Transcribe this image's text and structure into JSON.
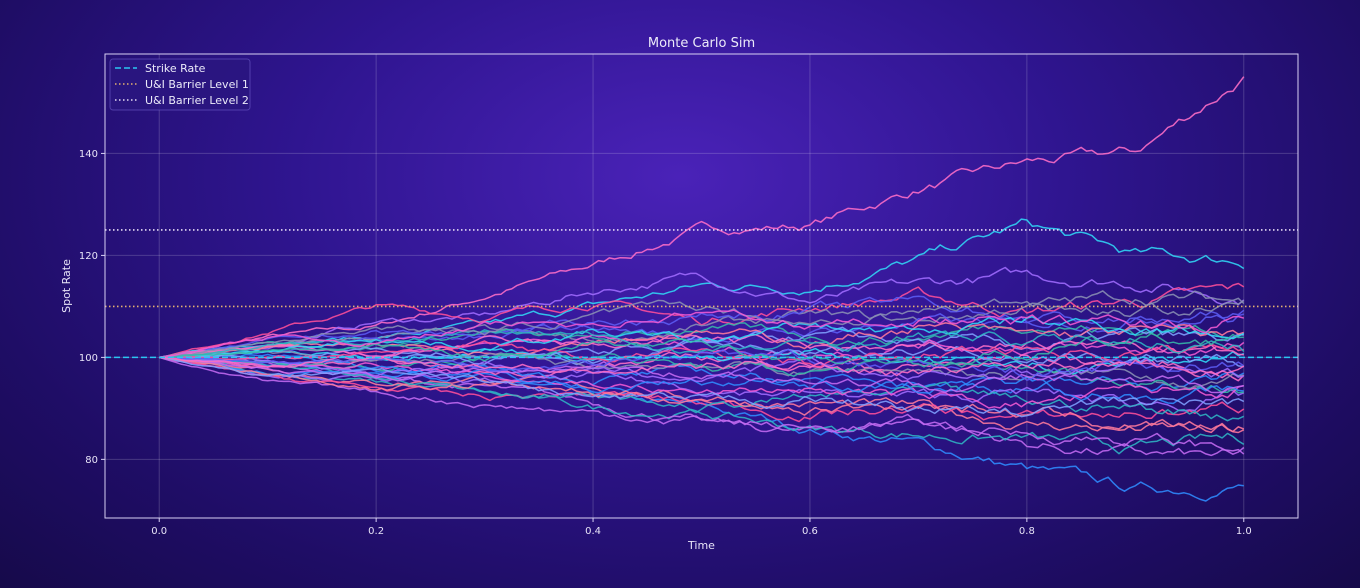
{
  "chart_data": {
    "type": "line",
    "title": "Monte Carlo Sim",
    "xlabel": "Time",
    "ylabel": "Spot Rate",
    "xlim": [
      -0.05,
      1.05
    ],
    "ylim": [
      68.5,
      159.5
    ],
    "xticks": [
      0.0,
      0.2,
      0.4,
      0.6,
      0.8,
      1.0
    ],
    "xtick_labels": [
      "0.0",
      "0.2",
      "0.4",
      "0.6",
      "0.8",
      "1.0"
    ],
    "yticks": [
      80,
      100,
      120,
      140
    ],
    "ytick_labels": [
      "80",
      "100",
      "120",
      "140"
    ],
    "grid": true,
    "legend_position": "top-left",
    "reference_lines": [
      {
        "name": "Strike Rate",
        "y": 100,
        "style": "dashed",
        "color": "#2bc6f2"
      },
      {
        "name": "U&I Barrier Level 1",
        "y": 110,
        "style": "dotted",
        "color": "#e3b070"
      },
      {
        "name": "U&I Barrier Level 2",
        "y": 125,
        "style": "dotted",
        "color": "#e6dcf4"
      }
    ],
    "path_colors": [
      "#ff6ec7",
      "#2f8cff",
      "#31d8f6",
      "#a06cff",
      "#ff4f9a",
      "#c46bf2",
      "#2fb5c4",
      "#ff7a9c",
      "#8a8fb4",
      "#5c5cf5",
      "#37b8a8",
      "#7fa0ff",
      "#f35ad4"
    ],
    "series": [
      {
        "x": [
          0,
          0.1,
          0.2,
          0.3,
          0.4,
          0.5,
          0.6,
          0.7,
          0.8,
          0.9,
          1.0
        ],
        "values": [
          100,
          104,
          106,
          112,
          118,
          125,
          126,
          133,
          138,
          140,
          155
        ]
      },
      {
        "x": [
          0,
          0.1,
          0.2,
          0.3,
          0.4,
          0.5,
          0.6,
          0.7,
          0.8,
          0.9,
          1.0
        ],
        "values": [
          100,
          101,
          98,
          96,
          92,
          90,
          86,
          83,
          78,
          74,
          75
        ]
      },
      {
        "x": [
          0,
          0.1,
          0.2,
          0.3,
          0.4,
          0.5,
          0.6,
          0.7,
          0.8,
          0.9,
          1.0
        ],
        "values": [
          100,
          103,
          104,
          106,
          110,
          114,
          114,
          119,
          126,
          120,
          119
        ]
      },
      {
        "x": [
          0,
          0.1,
          0.2,
          0.3,
          0.4,
          0.5,
          0.6,
          0.7,
          0.8,
          0.9,
          1.0
        ],
        "values": [
          100,
          102,
          107,
          108,
          113,
          116,
          111,
          114,
          116,
          115,
          112
        ]
      },
      {
        "x": [
          0,
          0.1,
          0.2,
          0.3,
          0.4,
          0.5,
          0.6,
          0.7,
          0.8,
          0.9,
          1.0
        ],
        "values": [
          100,
          105,
          110,
          108,
          111,
          107,
          110,
          112,
          109,
          111,
          113
        ]
      },
      {
        "x": [
          0,
          0.1,
          0.2,
          0.3,
          0.4,
          0.5,
          0.6,
          0.7,
          0.8,
          0.9,
          1.0
        ],
        "values": [
          100,
          99,
          96,
          94,
          91,
          87,
          85,
          88,
          83,
          81,
          80
        ]
      },
      {
        "x": [
          0,
          0.1,
          0.2,
          0.3,
          0.4,
          0.5,
          0.6,
          0.7,
          0.8,
          0.9,
          1.0
        ],
        "values": [
          100,
          97,
          95,
          93,
          90,
          89,
          86,
          85,
          84,
          82,
          84
        ]
      },
      {
        "x": [
          0,
          0.1,
          0.2,
          0.3,
          0.4,
          0.5,
          0.6,
          0.7,
          0.8,
          0.9,
          1.0
        ],
        "values": [
          100,
          98,
          95,
          96,
          94,
          92,
          91,
          90,
          87,
          86,
          85
        ]
      },
      {
        "x": [
          0,
          0.1,
          0.2,
          0.3,
          0.4,
          0.5,
          0.6,
          0.7,
          0.8,
          0.9,
          1.0
        ],
        "values": [
          100,
          102,
          104,
          105,
          103,
          106,
          108,
          107,
          110,
          112,
          111
        ]
      },
      {
        "x": [
          0,
          0.1,
          0.2,
          0.3,
          0.4,
          0.5,
          0.6,
          0.7,
          0.8,
          0.9,
          1.0
        ],
        "values": [
          100,
          101,
          103,
          104,
          106,
          104,
          105,
          107,
          106,
          108,
          109
        ]
      },
      {
        "x": [
          0,
          0.1,
          0.2,
          0.3,
          0.4,
          0.5,
          0.6,
          0.7,
          0.8,
          0.9,
          1.0
        ],
        "values": [
          100,
          103,
          102,
          105,
          103,
          106,
          104,
          104,
          107,
          105,
          106
        ]
      },
      {
        "x": [
          0,
          0.1,
          0.2,
          0.3,
          0.4,
          0.5,
          0.6,
          0.7,
          0.8,
          0.9,
          1.0
        ],
        "values": [
          100,
          99,
          100,
          101,
          99,
          102,
          104,
          103,
          102,
          104,
          103
        ]
      },
      {
        "x": [
          0,
          0.1,
          0.2,
          0.3,
          0.4,
          0.5,
          0.6,
          0.7,
          0.8,
          0.9,
          1.0
        ],
        "values": [
          100,
          102,
          101,
          103,
          104,
          102,
          101,
          103,
          102,
          101,
          102
        ]
      },
      {
        "x": [
          0,
          0.1,
          0.2,
          0.3,
          0.4,
          0.5,
          0.6,
          0.7,
          0.8,
          0.9,
          1.0
        ],
        "values": [
          100,
          98,
          99,
          97,
          98,
          100,
          99,
          98,
          100,
          99,
          97
        ]
      },
      {
        "x": [
          0,
          0.1,
          0.2,
          0.3,
          0.4,
          0.5,
          0.6,
          0.7,
          0.8,
          0.9,
          1.0
        ],
        "values": [
          100,
          99,
          97,
          98,
          96,
          97,
          95,
          96,
          94,
          95,
          96
        ]
      },
      {
        "x": [
          0,
          0.1,
          0.2,
          0.3,
          0.4,
          0.5,
          0.6,
          0.7,
          0.8,
          0.9,
          1.0
        ],
        "values": [
          100,
          101,
          100,
          102,
          100,
          99,
          101,
          100,
          98,
          99,
          100
        ]
      },
      {
        "x": [
          0,
          0.1,
          0.2,
          0.3,
          0.4,
          0.5,
          0.6,
          0.7,
          0.8,
          0.9,
          1.0
        ],
        "values": [
          100,
          97,
          96,
          95,
          96,
          94,
          93,
          92,
          93,
          91,
          92
        ]
      },
      {
        "x": [
          0,
          0.1,
          0.2,
          0.3,
          0.4,
          0.5,
          0.6,
          0.7,
          0.8,
          0.9,
          1.0
        ],
        "values": [
          100,
          96,
          94,
          92,
          93,
          91,
          89,
          90,
          88,
          89,
          90
        ]
      },
      {
        "x": [
          0,
          0.1,
          0.2,
          0.3,
          0.4,
          0.5,
          0.6,
          0.7,
          0.8,
          0.9,
          1.0
        ],
        "values": [
          100,
          95,
          93,
          91,
          89,
          88,
          86,
          87,
          85,
          84,
          82
        ]
      },
      {
        "x": [
          0,
          0.1,
          0.2,
          0.3,
          0.4,
          0.5,
          0.6,
          0.7,
          0.8,
          0.9,
          1.0
        ],
        "values": [
          100,
          98,
          97,
          94,
          92,
          90,
          92,
          93,
          91,
          90,
          89
        ]
      },
      {
        "x": [
          0,
          0.1,
          0.2,
          0.3,
          0.4,
          0.5,
          0.6,
          0.7,
          0.8,
          0.9,
          1.0
        ],
        "values": [
          100,
          102,
          103,
          101,
          104,
          105,
          103,
          106,
          104,
          105,
          104
        ]
      },
      {
        "x": [
          0,
          0.1,
          0.2,
          0.3,
          0.4,
          0.5,
          0.6,
          0.7,
          0.8,
          0.9,
          1.0
        ],
        "values": [
          100,
          101,
          99,
          100,
          98,
          99,
          97,
          98,
          96,
          97,
          95
        ]
      },
      {
        "x": [
          0,
          0.1,
          0.2,
          0.3,
          0.4,
          0.5,
          0.6,
          0.7,
          0.8,
          0.9,
          1.0
        ],
        "values": [
          100,
          103,
          105,
          104,
          107,
          108,
          109,
          111,
          108,
          107,
          108
        ]
      },
      {
        "x": [
          0,
          0.1,
          0.2,
          0.3,
          0.4,
          0.5,
          0.6,
          0.7,
          0.8,
          0.9,
          1.0
        ],
        "values": [
          100,
          99,
          98,
          100,
          101,
          98,
          97,
          99,
          98,
          96,
          94
        ]
      },
      {
        "x": [
          0,
          0.1,
          0.2,
          0.3,
          0.4,
          0.5,
          0.6,
          0.7,
          0.8,
          0.9,
          1.0
        ],
        "values": [
          100,
          100,
          102,
          99,
          101,
          103,
          100,
          102,
          101,
          100,
          99
        ]
      },
      {
        "x": [
          0,
          0.1,
          0.2,
          0.3,
          0.4,
          0.5,
          0.6,
          0.7,
          0.8,
          0.9,
          1.0
        ],
        "values": [
          100,
          98,
          99,
          96,
          95,
          93,
          94,
          92,
          91,
          93,
          94
        ]
      },
      {
        "x": [
          0,
          0.1,
          0.2,
          0.3,
          0.4,
          0.5,
          0.6,
          0.7,
          0.8,
          0.9,
          1.0
        ],
        "values": [
          100,
          102,
          100,
          103,
          102,
          104,
          102,
          101,
          103,
          102,
          100
        ]
      },
      {
        "x": [
          0,
          0.1,
          0.2,
          0.3,
          0.4,
          0.5,
          0.6,
          0.7,
          0.8,
          0.9,
          1.0
        ],
        "values": [
          100,
          97,
          98,
          97,
          94,
          95,
          96,
          94,
          95,
          93,
          93
        ]
      },
      {
        "x": [
          0,
          0.1,
          0.2,
          0.3,
          0.4,
          0.5,
          0.6,
          0.7,
          0.8,
          0.9,
          1.0
        ],
        "values": [
          100,
          101,
          104,
          102,
          105,
          103,
          106,
          105,
          107,
          106,
          105
        ]
      },
      {
        "x": [
          0,
          0.1,
          0.2,
          0.3,
          0.4,
          0.5,
          0.6,
          0.7,
          0.8,
          0.9,
          1.0
        ],
        "values": [
          100,
          99,
          97,
          99,
          97,
          96,
          98,
          96,
          97,
          98,
          97
        ]
      },
      {
        "x": [
          0,
          0.1,
          0.2,
          0.3,
          0.4,
          0.5,
          0.6,
          0.7,
          0.8,
          0.9,
          1.0
        ],
        "values": [
          100,
          100,
          101,
          103,
          100,
          101,
          99,
          100,
          102,
          101,
          102
        ]
      },
      {
        "x": [
          0,
          0.1,
          0.2,
          0.3,
          0.4,
          0.5,
          0.6,
          0.7,
          0.8,
          0.9,
          1.0
        ],
        "values": [
          100,
          98,
          96,
          97,
          99,
          97,
          96,
          95,
          96,
          94,
          95
        ]
      },
      {
        "x": [
          0,
          0.1,
          0.2,
          0.3,
          0.4,
          0.5,
          0.6,
          0.7,
          0.8,
          0.9,
          1.0
        ],
        "values": [
          100,
          102,
          103,
          105,
          104,
          101,
          102,
          104,
          103,
          104,
          101
        ]
      },
      {
        "x": [
          0,
          0.1,
          0.2,
          0.3,
          0.4,
          0.5,
          0.6,
          0.7,
          0.8,
          0.9,
          1.0
        ],
        "values": [
          100,
          97,
          94,
          95,
          93,
          92,
          90,
          91,
          89,
          87,
          86
        ]
      },
      {
        "x": [
          0,
          0.1,
          0.2,
          0.3,
          0.4,
          0.5,
          0.6,
          0.7,
          0.8,
          0.9,
          1.0
        ],
        "values": [
          100,
          103,
          106,
          105,
          108,
          110,
          107,
          109,
          111,
          109,
          110
        ]
      },
      {
        "x": [
          0,
          0.1,
          0.2,
          0.3,
          0.4,
          0.5,
          0.6,
          0.7,
          0.8,
          0.9,
          1.0
        ],
        "values": [
          100,
          99,
          100,
          98,
          99,
          101,
          100,
          98,
          97,
          99,
          98
        ]
      },
      {
        "x": [
          0,
          0.1,
          0.2,
          0.3,
          0.4,
          0.5,
          0.6,
          0.7,
          0.8,
          0.9,
          1.0
        ],
        "values": [
          100,
          101,
          102,
          100,
          103,
          102,
          100,
          99,
          101,
          103,
          104
        ]
      },
      {
        "x": [
          0,
          0.1,
          0.2,
          0.3,
          0.4,
          0.5,
          0.6,
          0.7,
          0.8,
          0.9,
          1.0
        ],
        "values": [
          100,
          96,
          97,
          95,
          92,
          91,
          92,
          90,
          89,
          91,
          91
        ]
      },
      {
        "x": [
          0,
          0.1,
          0.2,
          0.3,
          0.4,
          0.5,
          0.6,
          0.7,
          0.8,
          0.9,
          1.0
        ],
        "values": [
          100,
          104,
          103,
          106,
          107,
          109,
          106,
          108,
          107,
          106,
          107
        ]
      },
      {
        "x": [
          0,
          0.1,
          0.2,
          0.3,
          0.4,
          0.5,
          0.6,
          0.7,
          0.8,
          0.9,
          1.0
        ],
        "values": [
          100,
          98,
          100,
          99,
          97,
          98,
          99,
          97,
          99,
          100,
          99
        ]
      }
    ]
  }
}
